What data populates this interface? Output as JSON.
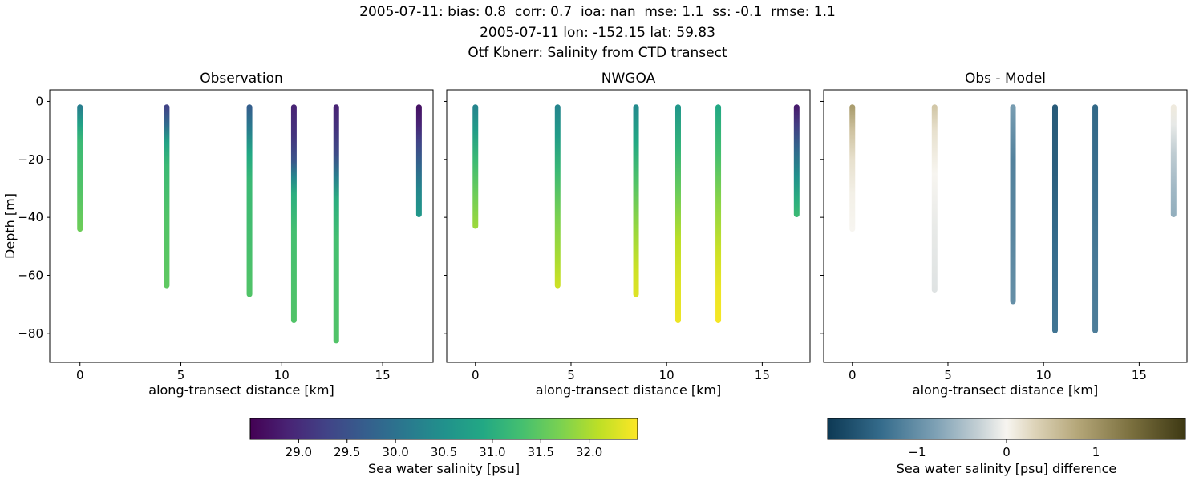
{
  "chart_data": {
    "type": "scatter",
    "titles": [
      "2005-07-11: bias: 0.8  corr: 0.7  ioa: nan  mse: 1.1  ss: -0.1  rmse: 1.1",
      "2005-07-11 lon: -152.15 lat: 59.83",
      "Otf Kbnerr: Salinity from CTD transect"
    ],
    "xlabel": "along-transect distance [km]",
    "ylabel": "Depth [m]",
    "xlim": [
      -1.5,
      17.5
    ],
    "ylim": [
      4,
      -90
    ],
    "xticks": {
      "values": [
        0,
        5,
        10,
        15
      ],
      "labels": [
        "0",
        "5",
        "10",
        "15"
      ]
    },
    "yticks": {
      "values": [
        0,
        -20,
        -40,
        -60,
        -80
      ],
      "labels": [
        "0",
        "−20",
        "−40",
        "−60",
        "−80"
      ]
    },
    "panels": [
      {
        "title": "Observation",
        "colormap": "viridis",
        "vmin": 28.5,
        "vmax": 32.5,
        "profiles": [
          {
            "x": 0.0,
            "points": [
              [
                -2,
                30.2
              ],
              [
                -8,
                30.8
              ],
              [
                -14,
                31.2
              ],
              [
                -30,
                31.4
              ],
              [
                -44,
                31.6
              ]
            ]
          },
          {
            "x": 4.3,
            "points": [
              [
                -2,
                29.3
              ],
              [
                -8,
                29.9
              ],
              [
                -14,
                30.8
              ],
              [
                -22,
                31.2
              ],
              [
                -40,
                31.4
              ],
              [
                -63.5,
                31.5
              ]
            ]
          },
          {
            "x": 8.4,
            "points": [
              [
                -2,
                29.7
              ],
              [
                -10,
                30.2
              ],
              [
                -18,
                30.9
              ],
              [
                -28,
                31.2
              ],
              [
                -66.5,
                31.4
              ]
            ]
          },
          {
            "x": 10.6,
            "points": [
              [
                -2,
                28.9
              ],
              [
                -12,
                29.1
              ],
              [
                -20,
                29.5
              ],
              [
                -26,
                30.3
              ],
              [
                -32,
                31.0
              ],
              [
                -45,
                31.3
              ],
              [
                -75.5,
                31.4
              ]
            ]
          },
          {
            "x": 12.7,
            "points": [
              [
                -2,
                28.9
              ],
              [
                -10,
                29.1
              ],
              [
                -18,
                29.4
              ],
              [
                -26,
                30.2
              ],
              [
                -34,
                31.0
              ],
              [
                -48,
                31.3
              ],
              [
                -82.5,
                31.4
              ]
            ]
          },
          {
            "x": 16.8,
            "points": [
              [
                -2,
                28.7
              ],
              [
                -8,
                28.9
              ],
              [
                -14,
                29.3
              ],
              [
                -22,
                29.8
              ],
              [
                -30,
                30.3
              ],
              [
                -39,
                30.6
              ]
            ]
          }
        ]
      },
      {
        "title": "NWGOA",
        "colormap": "viridis",
        "vmin": 28.5,
        "vmax": 32.5,
        "profiles": [
          {
            "x": 0.0,
            "points": [
              [
                -2,
                30.3
              ],
              [
                -10,
                30.7
              ],
              [
                -20,
                31.2
              ],
              [
                -32,
                31.6
              ],
              [
                -43,
                31.9
              ]
            ]
          },
          {
            "x": 4.3,
            "points": [
              [
                -2,
                30.3
              ],
              [
                -12,
                30.7
              ],
              [
                -24,
                31.2
              ],
              [
                -40,
                31.7
              ],
              [
                -55,
                32.0
              ],
              [
                -63.5,
                32.2
              ]
            ]
          },
          {
            "x": 8.4,
            "points": [
              [
                -2,
                30.4
              ],
              [
                -14,
                30.9
              ],
              [
                -28,
                31.4
              ],
              [
                -45,
                31.9
              ],
              [
                -58,
                32.2
              ],
              [
                -66.5,
                32.3
              ]
            ]
          },
          {
            "x": 10.6,
            "points": [
              [
                -2,
                30.6
              ],
              [
                -16,
                31.1
              ],
              [
                -32,
                31.6
              ],
              [
                -48,
                32.1
              ],
              [
                -62,
                32.3
              ],
              [
                -75.5,
                32.4
              ]
            ]
          },
          {
            "x": 12.7,
            "points": [
              [
                -2,
                30.9
              ],
              [
                -18,
                31.3
              ],
              [
                -35,
                31.8
              ],
              [
                -52,
                32.2
              ],
              [
                -65,
                32.4
              ],
              [
                -75.5,
                32.45
              ]
            ]
          },
          {
            "x": 16.8,
            "points": [
              [
                -2,
                28.8
              ],
              [
                -8,
                29.2
              ],
              [
                -16,
                29.8
              ],
              [
                -26,
                30.5
              ],
              [
                -34,
                31.0
              ],
              [
                -39,
                31.2
              ]
            ]
          }
        ]
      },
      {
        "title": "Obs - Model",
        "colormap": "diff",
        "vmin": -2,
        "vmax": 2,
        "profiles": [
          {
            "x": 0.0,
            "points": [
              [
                -2,
                0.9
              ],
              [
                -10,
                0.5
              ],
              [
                -20,
                0.2
              ],
              [
                -32,
                0.05
              ],
              [
                -44,
                0.0
              ]
            ]
          },
          {
            "x": 4.3,
            "points": [
              [
                -2,
                0.45
              ],
              [
                -10,
                0.2
              ],
              [
                -25,
                0.0
              ],
              [
                -45,
                -0.1
              ],
              [
                -65,
                -0.15
              ]
            ]
          },
          {
            "x": 8.4,
            "points": [
              [
                -2,
                -0.85
              ],
              [
                -20,
                -1.15
              ],
              [
                -45,
                -1.1
              ],
              [
                -69,
                -1.0
              ]
            ]
          },
          {
            "x": 10.6,
            "points": [
              [
                -2,
                -1.6
              ],
              [
                -25,
                -1.55
              ],
              [
                -50,
                -1.4
              ],
              [
                -79,
                -1.3
              ]
            ]
          },
          {
            "x": 12.7,
            "points": [
              [
                -2,
                -1.45
              ],
              [
                -30,
                -1.35
              ],
              [
                -55,
                -1.25
              ],
              [
                -79,
                -1.2
              ]
            ]
          },
          {
            "x": 16.8,
            "points": [
              [
                -2,
                0.1
              ],
              [
                -8,
                -0.1
              ],
              [
                -18,
                -0.35
              ],
              [
                -30,
                -0.55
              ],
              [
                -39,
                -0.65
              ]
            ]
          }
        ]
      }
    ],
    "colorbars": [
      {
        "colormap": "viridis",
        "vmin": 28.5,
        "vmax": 32.5,
        "ticks": [
          29.0,
          29.5,
          30.0,
          30.5,
          31.0,
          31.5,
          32.0
        ],
        "tick_labels": [
          "29.0",
          "29.5",
          "30.0",
          "30.5",
          "31.0",
          "31.5",
          "32.0"
        ],
        "label": "Sea water salinity [psu]"
      },
      {
        "colormap": "diff",
        "vmin": -2,
        "vmax": 2,
        "ticks": [
          -1,
          0,
          1
        ],
        "tick_labels": [
          "−1",
          "0",
          "1"
        ],
        "label": "Sea water salinity [psu] difference"
      }
    ],
    "colormaps": {
      "viridis": [
        [
          0,
          "#440154"
        ],
        [
          0.1,
          "#482475"
        ],
        [
          0.2,
          "#414487"
        ],
        [
          0.3,
          "#355f8d"
        ],
        [
          0.4,
          "#2a788e"
        ],
        [
          0.5,
          "#21918c"
        ],
        [
          0.6,
          "#22a884"
        ],
        [
          0.7,
          "#44bf70"
        ],
        [
          0.8,
          "#7ad151"
        ],
        [
          0.9,
          "#bddf26"
        ],
        [
          1,
          "#fde725"
        ]
      ],
      "diff": [
        [
          0,
          "#0d3954"
        ],
        [
          0.15,
          "#356c8c"
        ],
        [
          0.3,
          "#7da0b4"
        ],
        [
          0.42,
          "#c3cfd4"
        ],
        [
          0.5,
          "#f7f5f0"
        ],
        [
          0.58,
          "#ddd3b8"
        ],
        [
          0.7,
          "#b4a678"
        ],
        [
          0.85,
          "#7a6f3e"
        ],
        [
          1,
          "#3d3813"
        ]
      ]
    },
    "layout_hints": {
      "grid": false,
      "legend": "none",
      "colorbar_orientation": "horizontal",
      "shared_y_axis": true
    }
  }
}
